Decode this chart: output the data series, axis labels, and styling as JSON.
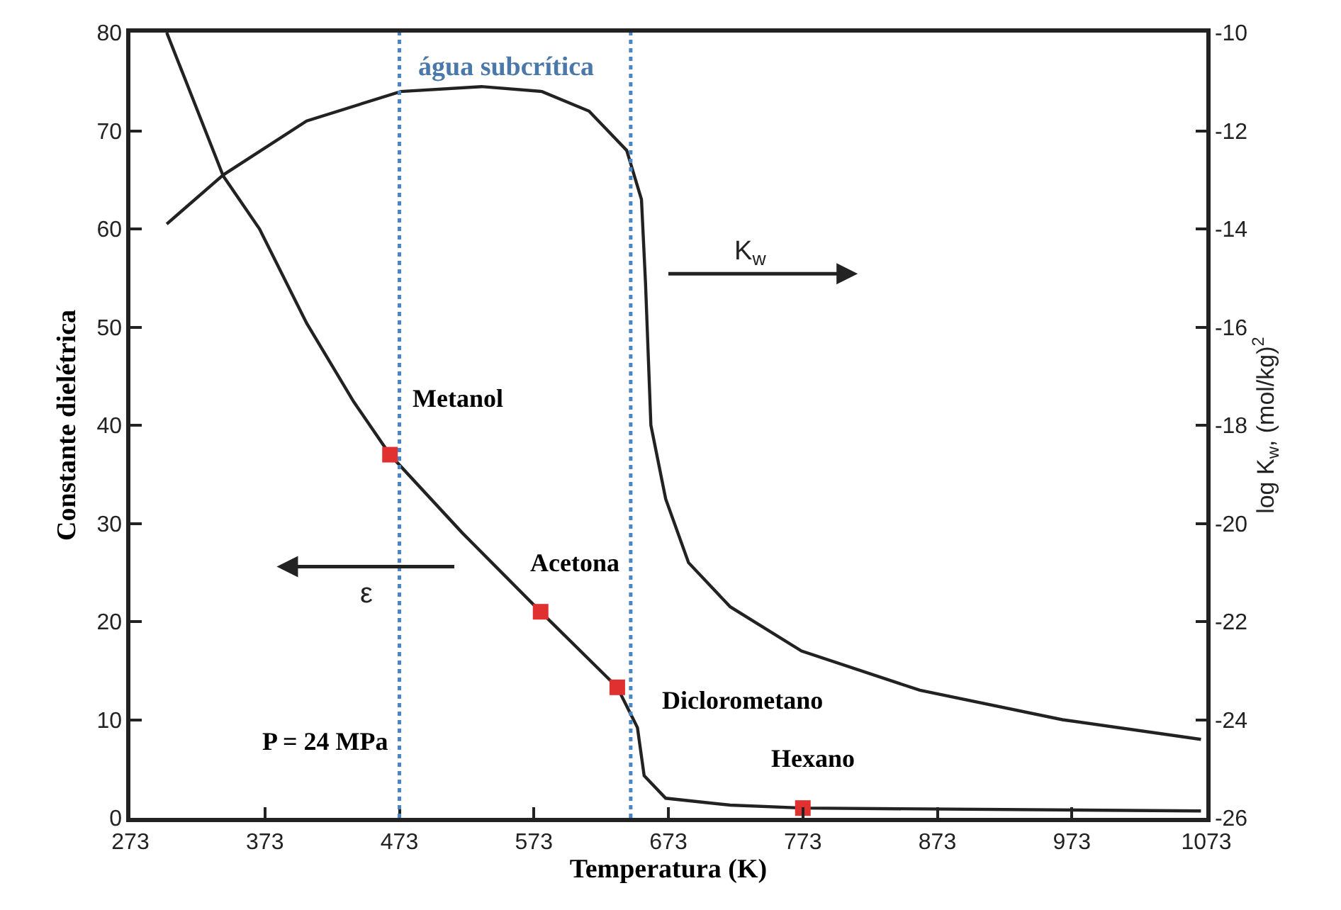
{
  "chart_data": {
    "type": "line",
    "xlabel": "Temperatura (K)",
    "ylabel": "Constante dielétrica",
    "y2label": "log K$_{w}$, (mol/kg)$^{2}$",
    "series": [
      {
        "color": "#222222",
        "line_style": "solid",
        "marker": "none",
        "x": [
          300,
          342,
          369,
          404,
          439,
          466,
          520,
          578,
          635,
          650,
          655,
          671,
          719,
          773,
          1069
        ],
        "values": [
          80,
          65.4,
          60,
          50.4,
          42.4,
          37,
          29,
          21,
          13.3,
          9.2,
          4.3,
          2,
          1.3,
          1,
          0.7
        ]
      },
      {
        "type": "line",
        "axis": "y2",
        "color": "#222222",
        "line_style": "solid",
        "marker": "none",
        "x": [
          300,
          342,
          404,
          474,
          534,
          579,
          614,
          642,
          653,
          656,
          660,
          671,
          688,
          719,
          772,
          860,
          966,
          1069
        ],
        "values": [
          -13.9,
          -12.9,
          -11.8,
          -11.2,
          -11.1,
          -11.2,
          -11.6,
          -12.4,
          -13.4,
          -15.1,
          -18,
          -19.5,
          -20.8,
          -21.7,
          -22.6,
          -23.4,
          -24,
          -24.4
        ]
      },
      {
        "type": "scatter",
        "color": "#e0302f",
        "marker": "square",
        "x": [
          466,
          578,
          635,
          773
        ],
        "values": [
          37,
          21,
          13.3,
          1
        ]
      }
    ],
    "xlim": [
      273,
      1073
    ],
    "xticks": [
      273,
      373,
      473,
      573,
      673,
      773,
      873,
      973,
      1073
    ],
    "ylim": [
      0,
      80
    ],
    "yticks": [
      0,
      10,
      20,
      30,
      40,
      50,
      60,
      70,
      80
    ],
    "y2lim": [
      -26,
      -10
    ],
    "y2ticks": [
      -26,
      -24,
      -22,
      -20,
      -18,
      -16,
      -14,
      -12,
      -10
    ],
    "ref_lines": [
      {
        "axis": "x",
        "value": 473,
        "line_style": "dotted",
        "color": "#4a86c5"
      },
      {
        "axis": "x",
        "value": 645,
        "line_style": "dotted",
        "color": "#4a86c5"
      }
    ],
    "annotations": [
      {
        "text": "Metanol",
        "x": 466,
        "y": 37
      },
      {
        "text": "Acetona",
        "x": 578,
        "y": 21
      },
      {
        "text": "Diclorometano",
        "x": 635,
        "y": 13.3
      },
      {
        "text": "Hexano",
        "x": 773,
        "y": 1
      },
      "K$_{w}$",
      "ε",
      "água subcrítica",
      "P = 24 MPa"
    ],
    "grid": false
  }
}
